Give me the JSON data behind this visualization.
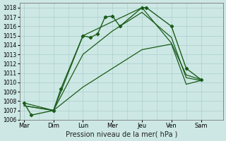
{
  "title": "",
  "xlabel": "Pression niveau de la mer( hPa )",
  "ylabel": "",
  "background_color": "#cde8e4",
  "grid_color": "#a8cccc",
  "line_color": "#1a5c1a",
  "ylim": [
    1006,
    1018.5
  ],
  "xlim": [
    -0.3,
    13.5
  ],
  "x_labels": [
    "Mar",
    "Dim",
    "Lun",
    "Mer",
    "Jeu",
    "Ven",
    "Sam"
  ],
  "x_ticks": [
    0,
    2,
    4,
    6,
    8,
    10,
    12
  ],
  "ytick_fontsize": 5.5,
  "xtick_fontsize": 6.0,
  "xlabel_fontsize": 7.0,
  "series": [
    {
      "x": [
        0,
        0.5,
        2,
        2.5,
        4,
        4.5,
        5,
        5.5,
        6,
        6.5,
        8,
        8.3,
        10,
        11,
        12
      ],
      "y": [
        1007.8,
        1006.5,
        1007.0,
        1009.3,
        1015.0,
        1014.8,
        1015.2,
        1017.0,
        1017.1,
        1016.0,
        1018.0,
        1018.0,
        1016.0,
        1011.5,
        1010.3
      ],
      "marker": "D",
      "markersize": 2.2,
      "linewidth": 1.0
    },
    {
      "x": [
        0,
        2,
        4,
        8,
        10,
        11,
        12
      ],
      "y": [
        1007.8,
        1007.0,
        1015.0,
        1018.0,
        1014.2,
        1010.8,
        1010.3
      ],
      "marker": null,
      "markersize": 0,
      "linewidth": 0.9
    },
    {
      "x": [
        0,
        2,
        4,
        6,
        8,
        10,
        11,
        12
      ],
      "y": [
        1007.5,
        1007.0,
        1013.0,
        1015.5,
        1017.5,
        1014.8,
        1010.5,
        1010.2
      ],
      "marker": null,
      "markersize": 0,
      "linewidth": 0.9
    },
    {
      "x": [
        0,
        2,
        4,
        6,
        8,
        10,
        11,
        12
      ],
      "y": [
        1007.5,
        1007.0,
        1009.5,
        1011.5,
        1013.5,
        1014.1,
        1009.8,
        1010.2
      ],
      "marker": null,
      "markersize": 0,
      "linewidth": 0.9
    }
  ]
}
